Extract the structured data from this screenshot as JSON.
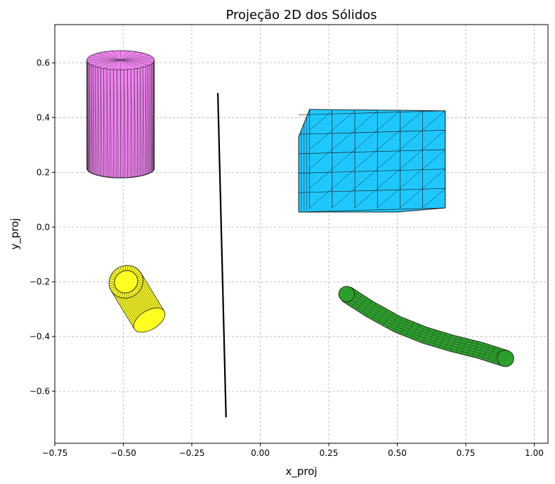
{
  "chart_data": {
    "type": "scatter",
    "title": "Projeção 2D dos Sólidos",
    "xlabel": "x_proj",
    "ylabel": "y_proj",
    "xlim": [
      -0.75,
      1.05
    ],
    "ylim": [
      -0.79,
      0.74
    ],
    "xticks": [
      -0.75,
      -0.5,
      -0.25,
      0.0,
      0.25,
      0.5,
      0.75,
      1.0
    ],
    "xtick_labels": [
      "−0.75",
      "−0.50",
      "−0.25",
      "0.00",
      "0.25",
      "0.50",
      "0.75",
      "1.00"
    ],
    "yticks": [
      -0.6,
      -0.4,
      -0.2,
      0.0,
      0.2,
      0.4,
      0.6
    ],
    "ytick_labels": [
      "−0.6",
      "−0.4",
      "−0.2",
      "0.0",
      "0.2",
      "0.4",
      "0.6"
    ],
    "grid": true,
    "colors": {
      "cylinder": "#ee82ee",
      "cube": "#1ec8ff",
      "tube": "#ffff22",
      "curved_tube": "#2ca02c",
      "line": "#000000",
      "mesh_edge": "#222222"
    },
    "solids": {
      "cylinder": {
        "x_center": -0.51,
        "x_half_width": 0.123,
        "y_top": 0.61,
        "y_bottom": 0.215,
        "ellipse_y_radius": 0.035
      },
      "cube": {
        "front_face": {
          "x": [
            0.14,
            0.5
          ],
          "y": [
            0.055,
            0.33
          ]
        },
        "back_offset": {
          "dx": 0.04,
          "dy": 0.1
        },
        "right_cap": {
          "x": [
            0.5,
            0.675
          ],
          "y": [
            0.07,
            0.425
          ]
        }
      },
      "line_segment": {
        "x": [
          -0.155,
          -0.125
        ],
        "y": [
          0.49,
          -0.695
        ]
      },
      "tube": {
        "start": {
          "x": -0.49,
          "y": -0.2
        },
        "end": {
          "x": -0.405,
          "y": -0.34
        },
        "outer_radius": 0.088,
        "inner_radius": 0.06
      },
      "curved_tube": {
        "centerline": {
          "x": [
            0.315,
            0.4,
            0.5,
            0.6,
            0.7,
            0.8,
            0.895
          ],
          "y": [
            -0.245,
            -0.3,
            -0.355,
            -0.395,
            -0.425,
            -0.45,
            -0.48
          ]
        },
        "radius": 0.03
      }
    }
  }
}
